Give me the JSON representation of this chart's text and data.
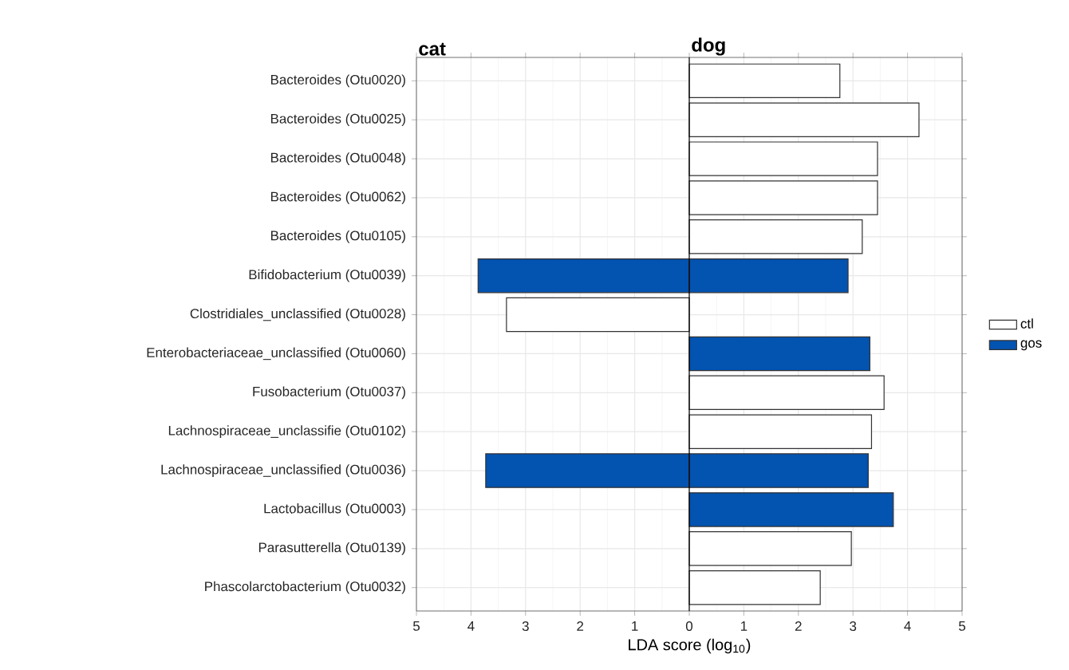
{
  "chart_data": {
    "type": "bar",
    "orientation": "horizontal",
    "xlabel": "LDA score (log$_{10}$)",
    "annotations": [
      "cat",
      "dog"
    ],
    "categories": [
      "Bacteroides (Otu0020)",
      "Bacteroides (Otu0025)",
      "Bacteroides (Otu0048)",
      "Bacteroides (Otu0062)",
      "Bacteroides (Otu0105)",
      "Bifidobacterium (Otu0039)",
      "Clostridiales_unclassified (Otu0028)",
      "Enterobacteriaceae_unclassified (Otu0060)",
      "Fusobacterium (Otu0037)",
      "Lachnospiraceae_unclassifie (Otu0102)",
      "Lachnospiraceae_unclassified (Otu0036)",
      "Lactobacillus (Otu0003)",
      "Parasutterella (Otu0139)",
      "Phascolarctobacterium (Otu0032)"
    ],
    "series": [
      {
        "name": "ctl",
        "color": "#ffffff",
        "values": [
          2.76,
          4.21,
          3.45,
          3.45,
          3.17,
          null,
          null,
          null,
          3.57,
          3.34,
          null,
          null,
          2.97,
          2.4
        ]
      },
      {
        "name": "gos",
        "color": "#0353b0",
        "values": [
          null,
          null,
          null,
          null,
          null,
          2.91,
          null,
          3.31,
          null,
          null,
          3.28,
          3.74,
          null,
          null
        ]
      },
      {
        "color": "#ffffff",
        "values": [
          null,
          null,
          null,
          null,
          null,
          null,
          -3.35,
          null,
          null,
          null,
          null,
          null,
          null,
          null
        ]
      },
      {
        "color": "#0353b0",
        "values": [
          null,
          null,
          null,
          null,
          null,
          -3.87,
          null,
          null,
          null,
          null,
          -3.73,
          null,
          null,
          null
        ]
      }
    ],
    "xlim": [
      -5,
      5
    ],
    "xticks": [
      {
        "value": -5,
        "label": "5"
      },
      {
        "value": -4,
        "label": "4"
      },
      {
        "value": -3,
        "label": "3"
      },
      {
        "value": -2,
        "label": "2"
      },
      {
        "value": -1,
        "label": "1"
      },
      0,
      1,
      2,
      3,
      4,
      5
    ],
    "ref_lines": [
      {
        "axis": "x",
        "value": 0,
        "color": "#000000"
      }
    ],
    "grid": true,
    "legend": "right"
  }
}
